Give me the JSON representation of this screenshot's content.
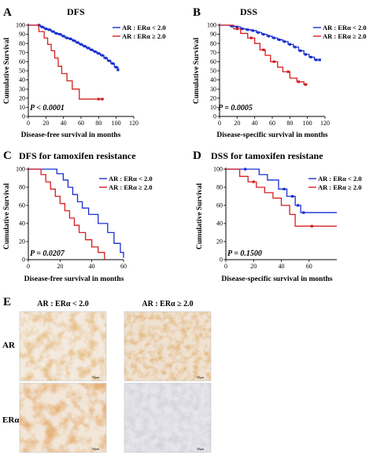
{
  "colors": {
    "low": "#1a2fd0",
    "high": "#d61f1f",
    "axis": "#000000",
    "stain": "#c9813e"
  },
  "chart_data": [
    {
      "type": "line",
      "step": true,
      "panel_label": "A",
      "title": "DFS",
      "xlabel": "Disease-free survival in months",
      "ylabel": "Cumulative Survival",
      "xlim": [
        0,
        120
      ],
      "ylim": [
        0,
        100
      ],
      "xticks": [
        0,
        20,
        40,
        60,
        80,
        100,
        120
      ],
      "yticks": [
        0,
        10,
        20,
        30,
        40,
        50,
        60,
        70,
        80,
        90,
        100
      ],
      "stat": "P < 0.0001",
      "legend_position": "top-right",
      "series": [
        {
          "name": "AR : ERα < 2.0",
          "color": "#1a2fd0",
          "x": [
            0,
            10,
            14,
            18,
            22,
            26,
            30,
            34,
            38,
            42,
            46,
            50,
            54,
            58,
            62,
            66,
            70,
            74,
            78,
            82,
            86,
            90,
            94,
            98,
            102
          ],
          "y": [
            100,
            100,
            98,
            96,
            95,
            93,
            91,
            90,
            88,
            86,
            85,
            83,
            81,
            79,
            77,
            75,
            73,
            71,
            69,
            67,
            64,
            61,
            58,
            54,
            51
          ],
          "censor_x": [
            12,
            16,
            20,
            24,
            28,
            32,
            36,
            40,
            44,
            48,
            52,
            56,
            60,
            64,
            68,
            72,
            76,
            80,
            84,
            88,
            92,
            96,
            100,
            102
          ]
        },
        {
          "name": "AR : ERα ≥ 2.0",
          "color": "#d61f1f",
          "x": [
            0,
            12,
            18,
            22,
            26,
            30,
            34,
            38,
            44,
            50,
            58,
            86
          ],
          "y": [
            100,
            93,
            86,
            79,
            72,
            64,
            55,
            47,
            39,
            30,
            19,
            19
          ],
          "censor_x": [
            80,
            84
          ]
        }
      ]
    },
    {
      "type": "line",
      "step": true,
      "panel_label": "B",
      "title": "DSS",
      "xlabel": "Disease-specific survival in months",
      "ylabel": "Cumulative Survival",
      "xlim": [
        0,
        120
      ],
      "ylim": [
        0,
        100
      ],
      "xticks": [
        0,
        20,
        40,
        60,
        80,
        100,
        120
      ],
      "yticks": [
        0,
        10,
        20,
        30,
        40,
        50,
        60,
        70,
        80,
        90,
        100
      ],
      "stat": "P = 0.0005",
      "legend_position": "top-right",
      "series": [
        {
          "name": "AR : ERα < 2.0",
          "color": "#1a2fd0",
          "x": [
            0,
            12,
            18,
            24,
            30,
            36,
            42,
            48,
            54,
            60,
            66,
            72,
            78,
            84,
            90,
            96,
            102,
            108,
            114
          ],
          "y": [
            100,
            99,
            98,
            96,
            95,
            94,
            92,
            90,
            88,
            86,
            84,
            82,
            79,
            76,
            72,
            68,
            65,
            62,
            62
          ],
          "censor_x": [
            14,
            20,
            26,
            32,
            38,
            44,
            50,
            56,
            62,
            68,
            74,
            80,
            86,
            92,
            98,
            104,
            110,
            114
          ]
        },
        {
          "name": "AR : ERα ≥ 2.0",
          "color": "#d61f1f",
          "x": [
            0,
            16,
            24,
            32,
            40,
            46,
            52,
            58,
            66,
            72,
            80,
            88,
            96,
            100
          ],
          "y": [
            100,
            96,
            91,
            86,
            80,
            73,
            67,
            60,
            54,
            49,
            42,
            38,
            35,
            35
          ],
          "censor_x": [
            20,
            36,
            50,
            62,
            78,
            90,
            98
          ]
        }
      ]
    },
    {
      "type": "line",
      "step": true,
      "panel_label": "C",
      "title": "DFS for tamoxifen resistance",
      "xlabel": "Disease-free survival in months",
      "ylabel": "Cumulative Survival",
      "xlim": [
        0,
        60
      ],
      "ylim": [
        0,
        100
      ],
      "xticks": [
        0,
        20,
        40,
        60
      ],
      "yticks": [
        0,
        20,
        40,
        60,
        80,
        100
      ],
      "stat": "P = 0.0207",
      "legend_position": "top-right",
      "series": [
        {
          "name": "AR : ERα < 2.0",
          "color": "#1a2fd0",
          "x": [
            0,
            18,
            22,
            25,
            28,
            31,
            34,
            38,
            44,
            50,
            54,
            58,
            60
          ],
          "y": [
            100,
            95,
            88,
            80,
            72,
            64,
            57,
            50,
            40,
            30,
            18,
            8,
            2
          ],
          "censor_x": []
        },
        {
          "name": "AR : ERα ≥ 2.0",
          "color": "#d61f1f",
          "x": [
            0,
            8,
            11,
            14,
            17,
            20,
            23,
            26,
            29,
            32,
            36,
            40,
            44,
            48
          ],
          "y": [
            100,
            94,
            86,
            78,
            70,
            62,
            54,
            46,
            38,
            30,
            22,
            14,
            8,
            0
          ],
          "censor_x": []
        }
      ]
    },
    {
      "type": "line",
      "step": true,
      "panel_label": "D",
      "title": "DSS for tamoxifen resistane",
      "xlabel": "Disease-specific survival in months",
      "ylabel": "Cumulative Survival",
      "xlim": [
        0,
        80
      ],
      "ylim": [
        0,
        100
      ],
      "xticks": [
        0,
        20,
        40,
        60
      ],
      "yticks": [
        0,
        20,
        40,
        60,
        80,
        100
      ],
      "stat": "P = 0.1500",
      "legend_position": "top-right",
      "series": [
        {
          "name": "AR : ERα < 2.0",
          "color": "#1a2fd0",
          "x": [
            0,
            24,
            30,
            38,
            44,
            50,
            54,
            80
          ],
          "y": [
            100,
            94,
            88,
            78,
            70,
            60,
            52,
            52
          ],
          "censor_x": [
            14,
            42,
            48,
            52,
            56
          ]
        },
        {
          "name": "AR : ERα ≥ 2.0",
          "color": "#d61f1f",
          "x": [
            0,
            10,
            16,
            22,
            28,
            34,
            40,
            46,
            50,
            80
          ],
          "y": [
            100,
            92,
            86,
            80,
            74,
            68,
            60,
            50,
            37,
            37
          ],
          "censor_x": [
            20,
            62
          ]
        }
      ]
    }
  ],
  "panel_e": {
    "panel_label": "E",
    "columns": [
      "AR : ERα < 2.0",
      "AR : ERα ≥ 2.0"
    ],
    "rows": [
      "AR",
      "ERα"
    ],
    "scale_text": "50μm"
  }
}
